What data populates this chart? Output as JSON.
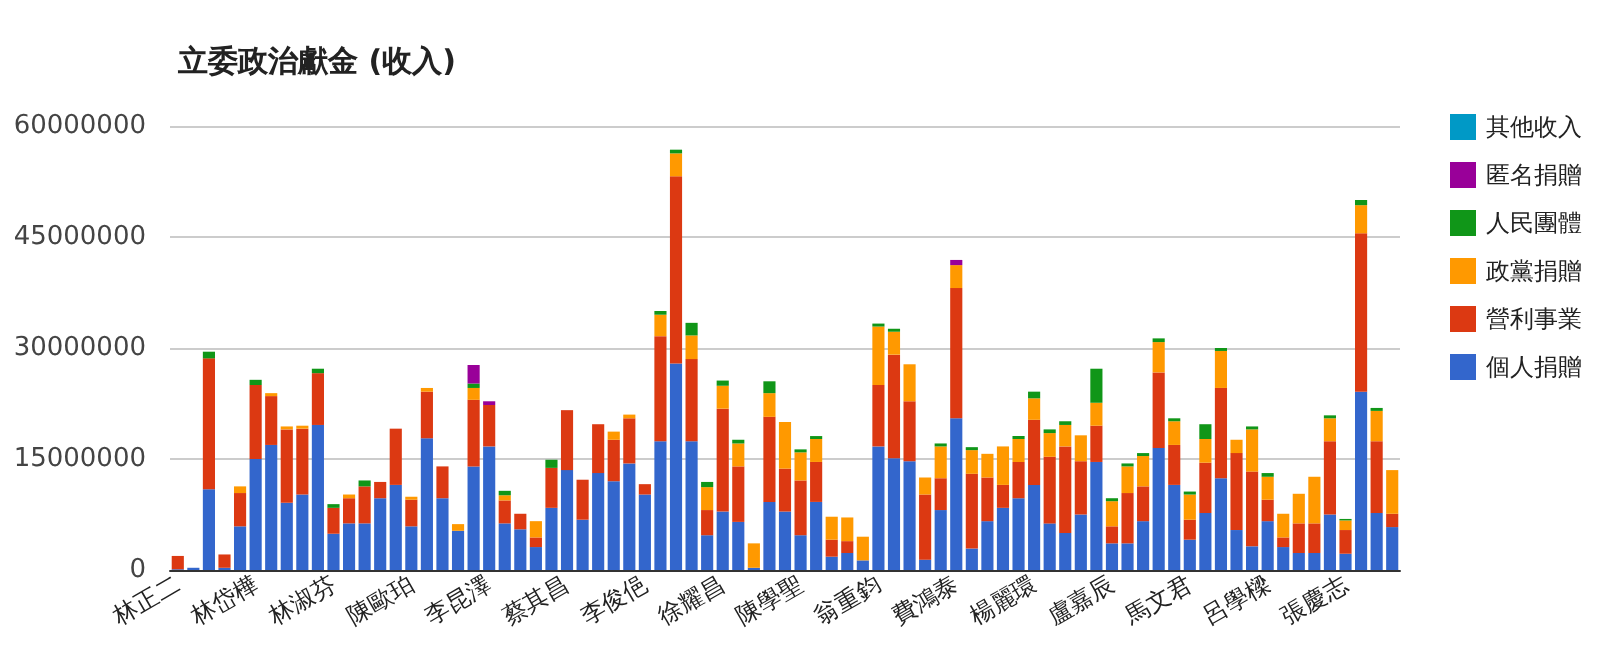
{
  "chart_data": {
    "type": "bar",
    "title": "立委政治獻金 (收入)",
    "stacked": true,
    "categories": [
      "林正二",
      null,
      null,
      null,
      null,
      "林岱樺",
      null,
      null,
      null,
      null,
      "林淑芬",
      null,
      null,
      null,
      null,
      "陳歐珀",
      null,
      null,
      null,
      null,
      "李昆澤",
      null,
      null,
      null,
      null,
      "蔡其昌",
      null,
      null,
      null,
      null,
      "李俊俋",
      null,
      null,
      null,
      null,
      "徐耀昌",
      null,
      null,
      null,
      null,
      "陳學聖",
      null,
      null,
      null,
      null,
      "翁重鈞",
      null,
      null,
      null,
      null,
      "費鴻泰",
      null,
      null,
      null,
      null,
      "楊麗環",
      null,
      null,
      null,
      null,
      "盧嘉辰",
      null,
      null,
      null,
      null,
      "馬文君",
      null,
      null,
      null,
      null,
      "呂學樑",
      null,
      null,
      null,
      null,
      "張慶志",
      null,
      null,
      null
    ],
    "series": [
      {
        "name": "個人捐贈",
        "color": "#3366cc",
        "values": [
          100000,
          300000,
          10900000,
          300000,
          5900000,
          15000000,
          16900000,
          9100000,
          10200000,
          19600000,
          4900000,
          6300000,
          6300000,
          9700000,
          11500000,
          5900000,
          17800000,
          9700000,
          5300000,
          14000000,
          16700000,
          6300000,
          5500000,
          3100000,
          8400000,
          13500000,
          6800000,
          13100000,
          12000000,
          14400000,
          10200000,
          17400000,
          27900000,
          17400000,
          4700000,
          7900000,
          6500000,
          300000,
          9200000,
          7900000,
          4700000,
          9200000,
          1800000,
          2300000,
          1300000,
          16700000,
          15100000,
          14700000,
          1400000,
          8100000,
          20500000,
          2900000,
          6600000,
          8400000,
          9700000,
          11500000,
          6300000,
          5000000,
          7500000,
          14600000,
          3600000,
          3600000,
          6600000,
          16500000,
          11500000,
          4100000,
          7700000,
          12400000,
          5400000,
          3200000,
          6600000,
          3100000,
          2300000,
          2300000,
          7500000,
          2200000,
          24100000,
          7700000,
          5800000
        ]
      },
      {
        "name": "營利事業",
        "color": "#dc3912",
        "values": [
          1800000,
          0,
          17700000,
          1800000,
          4500000,
          10000000,
          6600000,
          9900000,
          8900000,
          7000000,
          3500000,
          3400000,
          5000000,
          2200000,
          7600000,
          3600000,
          6300000,
          4300000,
          0,
          9000000,
          5600000,
          3100000,
          2100000,
          1300000,
          5400000,
          8100000,
          5400000,
          6600000,
          5600000,
          6100000,
          1400000,
          14200000,
          25300000,
          11100000,
          3400000,
          13900000,
          7500000,
          0,
          11500000,
          5800000,
          7400000,
          5400000,
          2300000,
          1600000,
          0,
          8300000,
          14000000,
          8100000,
          8800000,
          4300000,
          17600000,
          10100000,
          5900000,
          3100000,
          4900000,
          8800000,
          9000000,
          11700000,
          7200000,
          4900000,
          2300000,
          6800000,
          4700000,
          10200000,
          5400000,
          2700000,
          6800000,
          12200000,
          10400000,
          10100000,
          2900000,
          1300000,
          4000000,
          4000000,
          9900000,
          3200000,
          21400000,
          9700000,
          1800000
        ]
      },
      {
        "name": "政黨捐贈",
        "color": "#ff9900",
        "values": [
          0,
          0,
          0,
          0,
          900000,
          0,
          400000,
          400000,
          400000,
          0,
          0,
          500000,
          0,
          0,
          0,
          400000,
          500000,
          0,
          900000,
          1600000,
          0,
          700000,
          0,
          2200000,
          0,
          0,
          0,
          0,
          1100000,
          500000,
          0,
          2900000,
          3100000,
          3200000,
          3100000,
          3100000,
          3100000,
          3300000,
          3200000,
          6300000,
          3800000,
          3100000,
          3100000,
          3200000,
          3200000,
          7900000,
          3100000,
          5000000,
          2300000,
          4300000,
          3100000,
          3200000,
          3200000,
          5200000,
          3100000,
          2900000,
          3200000,
          2900000,
          3500000,
          3100000,
          3400000,
          3600000,
          4100000,
          4100000,
          3200000,
          3400000,
          3200000,
          5000000,
          1800000,
          5700000,
          3100000,
          3200000,
          4000000,
          6300000,
          3100000,
          1300000,
          3800000,
          4100000,
          5900000
        ]
      },
      {
        "name": "人民團體",
        "color": "#109618",
        "values": [
          0,
          0,
          900000,
          0,
          0,
          700000,
          0,
          0,
          0,
          600000,
          500000,
          0,
          800000,
          0,
          0,
          0,
          0,
          0,
          0,
          600000,
          0,
          600000,
          0,
          0,
          1100000,
          0,
          0,
          0,
          0,
          0,
          0,
          500000,
          500000,
          1700000,
          700000,
          700000,
          500000,
          0,
          1600000,
          0,
          400000,
          400000,
          0,
          0,
          0,
          400000,
          400000,
          0,
          0,
          400000,
          0,
          400000,
          0,
          0,
          400000,
          900000,
          500000,
          500000,
          0,
          4600000,
          400000,
          400000,
          400000,
          500000,
          400000,
          400000,
          2000000,
          400000,
          0,
          400000,
          500000,
          0,
          0,
          0,
          400000,
          200000,
          700000,
          400000,
          0
        ]
      },
      {
        "name": "匿名捐贈",
        "color": "#990099",
        "values": [
          0,
          0,
          0,
          0,
          0,
          0,
          0,
          0,
          0,
          0,
          0,
          0,
          0,
          0,
          0,
          0,
          0,
          0,
          0,
          2500000,
          500000,
          0,
          0,
          0,
          0,
          0,
          0,
          0,
          0,
          0,
          0,
          0,
          0,
          0,
          0,
          0,
          0,
          0,
          0,
          0,
          0,
          0,
          0,
          0,
          0,
          0,
          0,
          0,
          0,
          0,
          700000,
          0,
          0,
          0,
          0,
          0,
          0,
          0,
          0,
          0,
          0,
          0,
          0,
          0,
          0,
          0,
          0,
          0,
          0,
          0,
          0,
          0,
          0,
          0,
          0,
          0,
          0,
          0,
          0
        ]
      },
      {
        "name": "其他收入",
        "color": "#0099c6",
        "values": [
          0,
          0,
          0,
          0,
          0,
          0,
          0,
          0,
          0,
          0,
          0,
          0,
          0,
          0,
          0,
          0,
          0,
          0,
          0,
          0,
          0,
          0,
          0,
          0,
          0,
          0,
          0,
          0,
          0,
          0,
          0,
          0,
          0,
          0,
          0,
          0,
          0,
          0,
          0,
          0,
          0,
          0,
          0,
          0,
          0,
          0,
          0,
          0,
          0,
          0,
          0,
          0,
          0,
          0,
          0,
          0,
          0,
          0,
          0,
          0,
          0,
          0,
          0,
          0,
          0,
          0,
          0,
          0,
          0,
          0,
          0,
          0,
          0,
          0,
          0,
          0,
          0,
          0,
          0
        ]
      }
    ],
    "ylim": [
      0,
      60000000
    ],
    "yticks": [
      0,
      15000000,
      30000000,
      45000000,
      60000000
    ],
    "grid": "y",
    "legend": "right"
  }
}
